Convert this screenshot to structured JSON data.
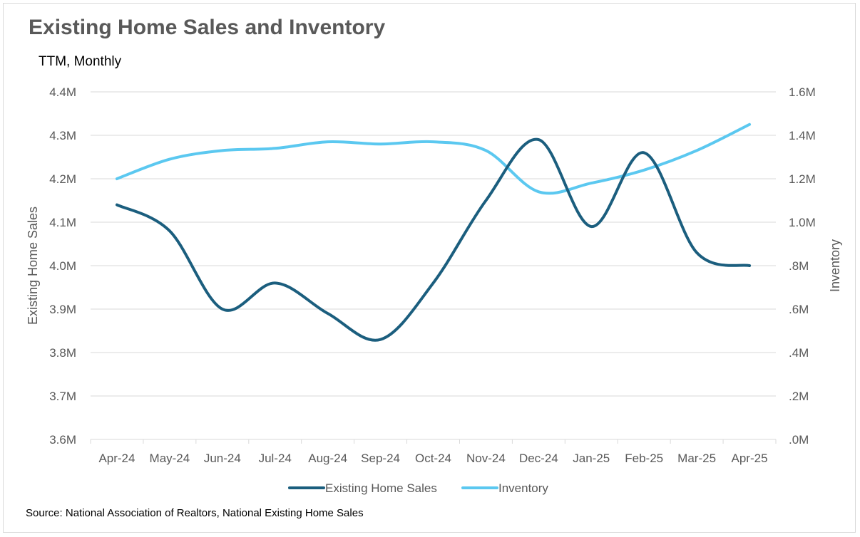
{
  "title": "Existing Home Sales and Inventory",
  "subtitle": "TTM, Monthly",
  "source": "Source: National Association of Realtors, National Existing Home Sales",
  "chart_data": {
    "type": "line",
    "title": "Existing Home Sales and Inventory",
    "subtitle": "TTM, Monthly",
    "categories": [
      "Apr-24",
      "May-24",
      "Jun-24",
      "Jul-24",
      "Aug-24",
      "Sep-24",
      "Oct-24",
      "Nov-24",
      "Dec-24",
      "Jan-25",
      "Feb-25",
      "Mar-25",
      "Apr-25"
    ],
    "y_left": {
      "label": "Existing Home Sales",
      "range": [
        3.6,
        4.4
      ],
      "ticks": [
        3.6,
        3.7,
        3.8,
        3.9,
        4.0,
        4.1,
        4.2,
        4.3,
        4.4
      ],
      "tick_labels": [
        "3.6M",
        "3.7M",
        "3.8M",
        "3.9M",
        "4.0M",
        "4.1M",
        "4.2M",
        "4.3M",
        "4.4M"
      ]
    },
    "y_right": {
      "label": "Inventory",
      "range": [
        0.0,
        1.6
      ],
      "ticks": [
        0.0,
        0.2,
        0.4,
        0.6,
        0.8,
        1.0,
        1.2,
        1.4,
        1.6
      ],
      "tick_labels": [
        ".0M",
        ".2M",
        ".4M",
        ".6M",
        ".8M",
        "1.0M",
        "1.2M",
        "1.4M",
        "1.6M"
      ]
    },
    "series": [
      {
        "name": "Existing Home Sales",
        "axis": "left",
        "color": "#1b5e7e",
        "values": [
          4.14,
          4.08,
          3.9,
          3.96,
          3.89,
          3.83,
          3.96,
          4.15,
          4.29,
          4.09,
          4.26,
          4.03,
          4.0
        ]
      },
      {
        "name": "Inventory",
        "axis": "right",
        "color": "#5bc8f0",
        "values": [
          1.2,
          1.29,
          1.33,
          1.34,
          1.37,
          1.36,
          1.37,
          1.33,
          1.14,
          1.18,
          1.24,
          1.33,
          1.45
        ]
      }
    ],
    "grid": true,
    "legend_position": "bottom"
  }
}
